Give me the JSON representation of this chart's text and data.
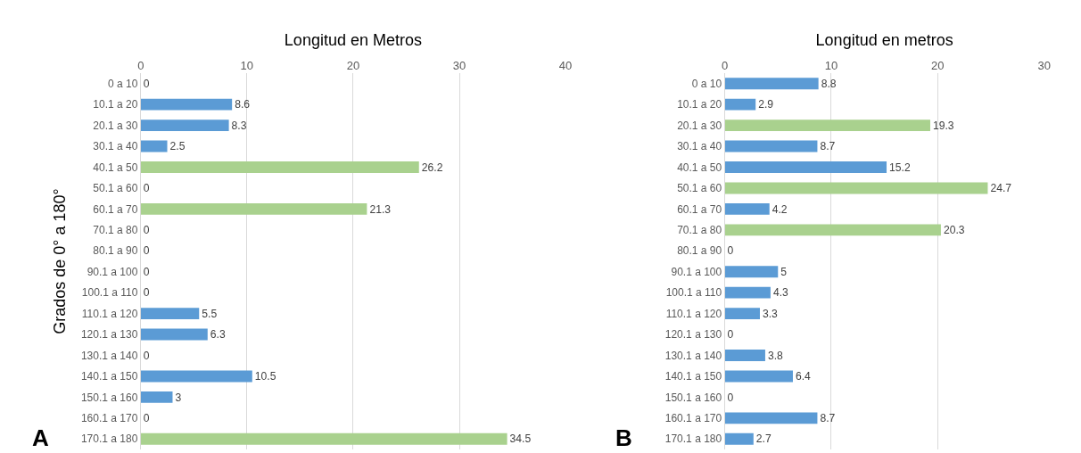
{
  "chart_data": [
    {
      "type": "bar",
      "orientation": "horizontal",
      "xlabel": "Longitud en Metros",
      "ylabel": "Grados de 0° a 180°",
      "annotations": [
        "A"
      ],
      "categories": [
        "0 a 10",
        "10.1 a 20",
        "20.1 a 30",
        "30.1 a 40",
        "40.1 a 50",
        "50.1 a 60",
        "60.1 a 70",
        "70.1 a 80",
        "80.1 a 90",
        "90.1 a 100",
        "100.1 a 110",
        "110.1 a 120",
        "120.1 a 130",
        "130.1 a 140",
        "140.1 a 150",
        "150.1 a 160",
        "160.1 a 170",
        "170.1 a 180"
      ],
      "values": [
        0,
        8.6,
        8.3,
        2.5,
        26.2,
        0,
        21.3,
        0,
        0,
        0,
        0,
        5.5,
        6.3,
        0,
        10.5,
        3,
        0,
        34.5
      ],
      "colors": [
        "#5b9bd5",
        "#5b9bd5",
        "#5b9bd5",
        "#5b9bd5",
        "#a9d18e",
        "#5b9bd5",
        "#a9d18e",
        "#5b9bd5",
        "#5b9bd5",
        "#5b9bd5",
        "#5b9bd5",
        "#5b9bd5",
        "#5b9bd5",
        "#5b9bd5",
        "#5b9bd5",
        "#5b9bd5",
        "#5b9bd5",
        "#a9d18e"
      ],
      "xlim": [
        0,
        40
      ],
      "xticks": [
        0,
        10,
        20,
        30,
        40
      ],
      "grid": "x",
      "data_labels": true
    },
    {
      "type": "bar",
      "orientation": "horizontal",
      "xlabel": "Longitud en metros",
      "annotations": [
        "B"
      ],
      "categories": [
        "0 a 10",
        "10.1 a 20",
        "20.1 a 30",
        "30.1 a 40",
        "40.1 a 50",
        "50.1 a 60",
        "60.1 a 70",
        "70.1 a 80",
        "80.1 a 90",
        "90.1 a 100",
        "100.1 a 110",
        "110.1 a 120",
        "120.1 a 130",
        "130.1 a 140",
        "140.1 a 150",
        "150.1 a 160",
        "160.1 a 170",
        "170.1 a 180"
      ],
      "values": [
        8.8,
        2.9,
        19.3,
        8.7,
        15.2,
        24.7,
        4.2,
        20.3,
        0,
        5,
        4.3,
        3.3,
        0,
        3.8,
        6.4,
        0,
        8.7,
        2.7
      ],
      "colors": [
        "#5b9bd5",
        "#5b9bd5",
        "#a9d18e",
        "#5b9bd5",
        "#5b9bd5",
        "#a9d18e",
        "#5b9bd5",
        "#a9d18e",
        "#5b9bd5",
        "#5b9bd5",
        "#5b9bd5",
        "#5b9bd5",
        "#5b9bd5",
        "#5b9bd5",
        "#5b9bd5",
        "#5b9bd5",
        "#5b9bd5",
        "#5b9bd5"
      ],
      "xlim": [
        0,
        30
      ],
      "xticks": [
        0,
        10,
        20,
        30
      ],
      "grid": "x",
      "data_labels": true
    }
  ]
}
